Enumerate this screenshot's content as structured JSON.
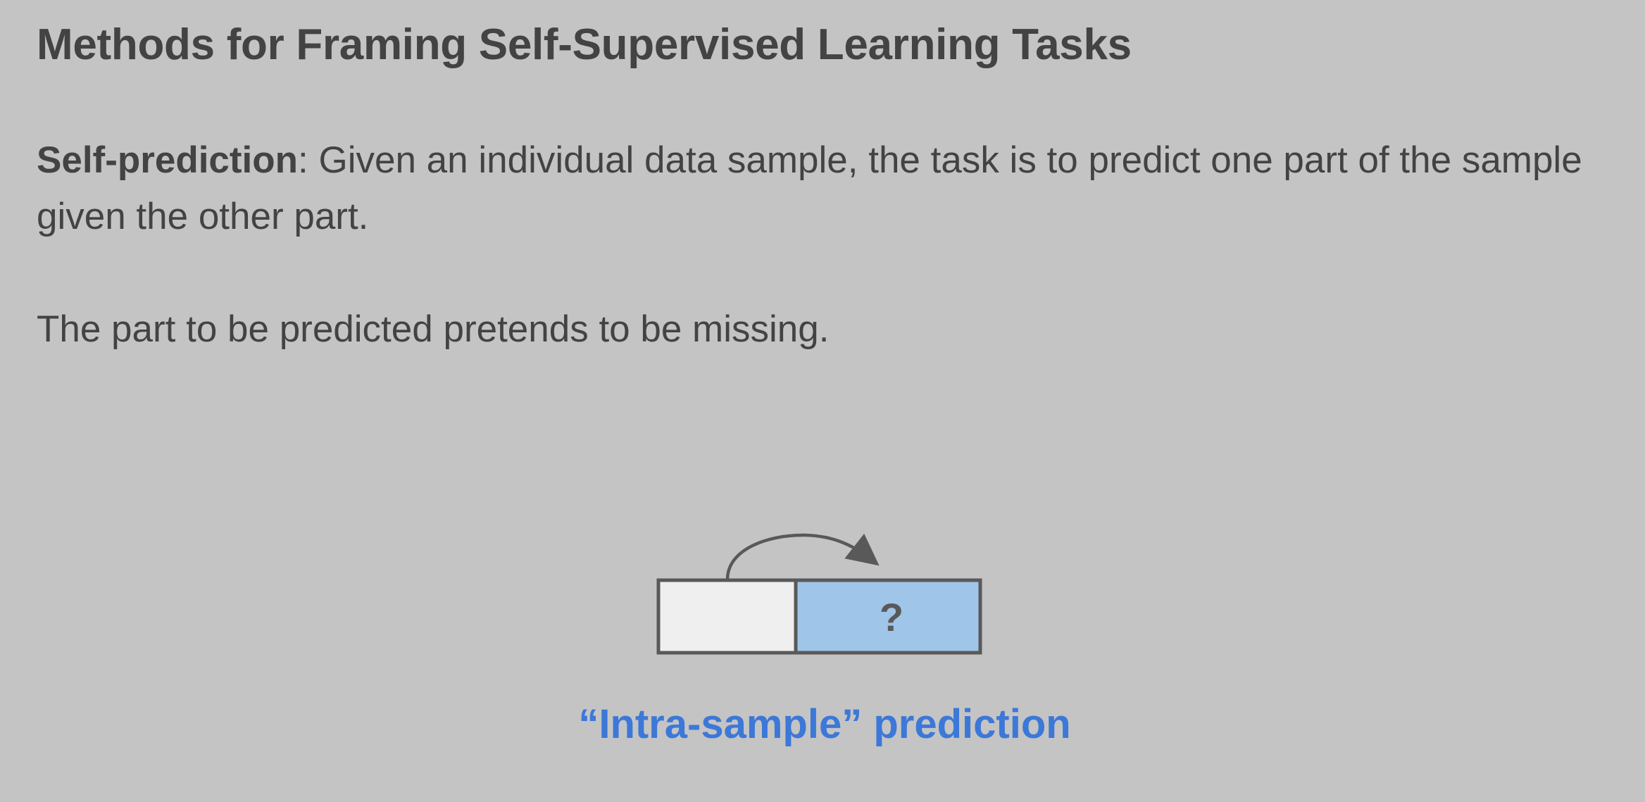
{
  "slide": {
    "title": "Methods for Framing Self-Supervised Learning Tasks",
    "definition": {
      "term": "Self-prediction",
      "separator": ": ",
      "text": "Given an individual data sample, the task is to predict one part of the sample given the other part."
    },
    "note": "The part to be predicted pretends to be missing.",
    "diagram": {
      "known_part_label": "",
      "missing_part_label": "?",
      "colors": {
        "known_fill": "#efefef",
        "missing_fill": "#9fc5e8",
        "stroke": "#595959"
      }
    },
    "caption": "“Intra-sample” prediction",
    "colors": {
      "background": "#c4c4c4",
      "text": "#434343",
      "accent": "#3c78d8"
    }
  }
}
